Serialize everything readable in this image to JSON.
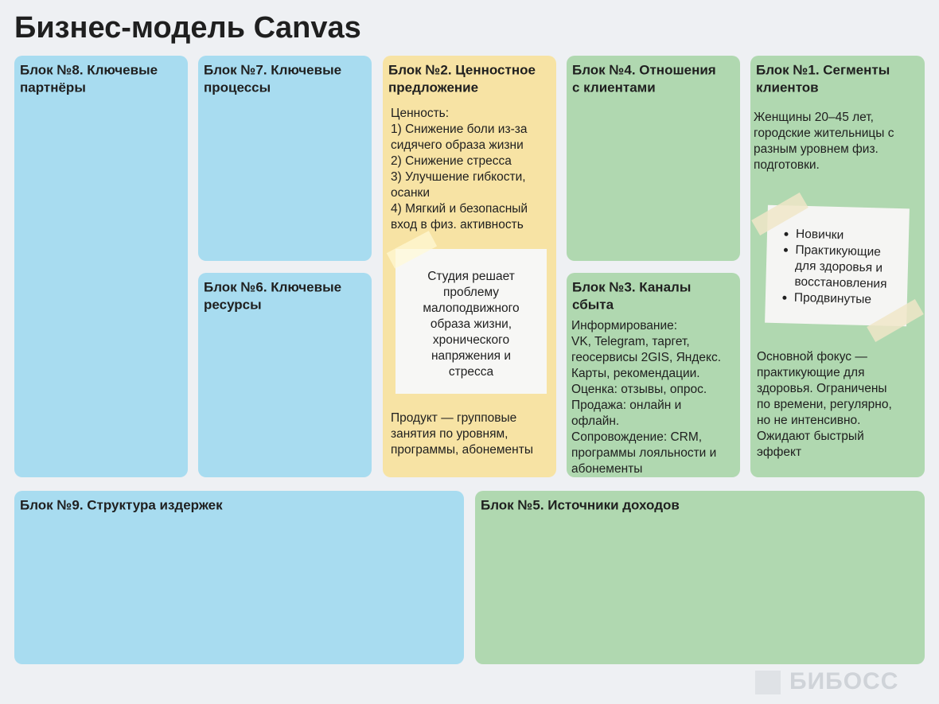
{
  "header": {
    "title": "Бизнес-модель Canvas"
  },
  "blocks": [
    {
      "title": [
        "Блок №8. Ключевые",
        "партнёры"
      ]
    },
    {
      "title": [
        "Блок №7. Ключевые",
        "процессы"
      ]
    },
    {
      "title": [
        "Блок №6. Ключевые",
        "ресурсы"
      ]
    },
    {
      "title": [
        "Блок №2. Ценностное",
        "предложение"
      ],
      "text": [
        "Ценность:",
        "1) Снижение боли из-за",
        "сидячего образа жизни",
        "2) Снижение стресса",
        "3) Улучшение гибкости,",
        "осанки",
        "4) Мягкий и безопасный",
        "вход в физ. активность"
      ],
      "note": [
        "Студия решает",
        "проблему",
        "малоподвижного",
        "образа жизни,",
        "хронического",
        "напряжения и",
        "стресса"
      ],
      "text2": [
        "Продукт — групповые",
        "занятия по уровням,",
        "программы, абонементы"
      ]
    },
    {
      "title": [
        "Блок №4. Отношения",
        "с клиентами"
      ]
    },
    {
      "title": [
        "Блок №3. Каналы",
        "сбыта"
      ],
      "text": [
        "Информирование:",
        "VK, Telegram, таргет,",
        "геосервисы 2GIS, Яндекс.",
        "Карты, рекомендации.",
        "Оценка: отзывы, опрос.",
        "Продажа: онлайн и",
        "офлайн.",
        "Сопровождение: CRM,",
        "программы лояльности и",
        "абонементы"
      ]
    },
    {
      "title": [
        "Блок №1. Сегменты",
        "клиентов"
      ],
      "text": [
        "Женщины 20–45 лет,",
        "городские жительницы с",
        "разным уровнем физ.",
        "подготовки."
      ],
      "list": [
        [
          "Новички"
        ],
        [
          "Практикующие",
          "для здоровья и",
          "восстановления"
        ],
        [
          "Продвинутые"
        ]
      ],
      "text2": [
        "Основной фокус —",
        "практикующие для",
        "здоровья. Ограничены",
        "по времени, регулярно,",
        "но не интенсивно.",
        "Ожидают быстрый",
        "эффект"
      ]
    },
    {
      "title": [
        "Блок №9. Структура издержек"
      ]
    },
    {
      "title": [
        "Блок №5. Источники доходов"
      ]
    }
  ],
  "logo": "БИБОСС"
}
